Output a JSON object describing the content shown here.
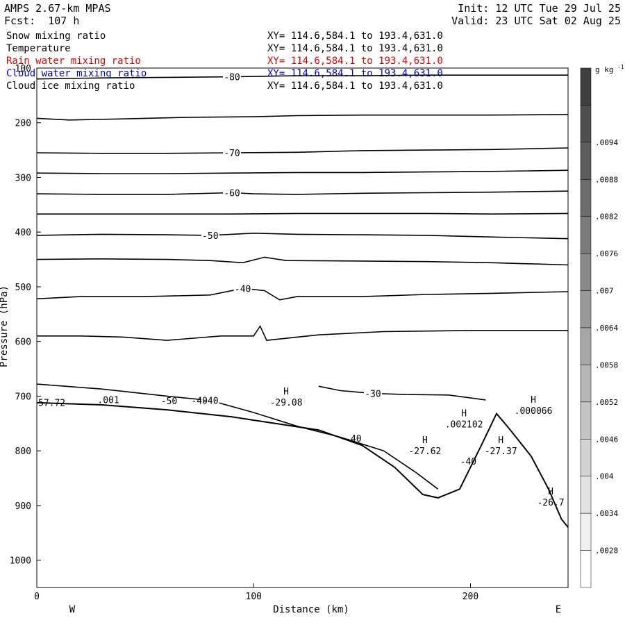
{
  "header": {
    "title": "AMPS 2.67-km MPAS",
    "forecast": "Fcst:  107 h",
    "init": "Init: 12 UTC Tue 29 Jul 25",
    "valid": "Valid: 23 UTC Sat 02 Aug 25"
  },
  "fields": [
    {
      "name": "Snow mixing ratio",
      "xy": "XY= 114.6,584.1 to 193.4,631.0",
      "color": "#000000"
    },
    {
      "name": "Temperature",
      "xy": "XY= 114.6,584.1 to 193.4,631.0",
      "color": "#000000"
    },
    {
      "name": "Rain water mixing ratio",
      "xy": "XY= 114.6,584.1 to 193.4,631.0",
      "color": "#e00000"
    },
    {
      "name": "Cloud water mixing ratio",
      "xy": "XY= 114.6,584.1 to 193.4,631.0",
      "color": "#0000c0"
    },
    {
      "name": "Cloud ice mixing ratio",
      "xy": "XY= 114.6,584.1 to 193.4,631.0",
      "color": "#000000"
    }
  ],
  "chart_data": {
    "type": "line",
    "xlabel": "Distance (km)",
    "ylabel": "Pressure (hPa)",
    "xlim": [
      0,
      245
    ],
    "ylim": [
      100,
      1050
    ],
    "y_scale": "linear, inverted",
    "x_ticks": [
      "0",
      "100",
      "200"
    ],
    "y_ticks": [
      "100",
      "200",
      "300",
      "400",
      "500",
      "600",
      "700",
      "800",
      "900",
      "1000"
    ],
    "x_end_labels": {
      "left": "W",
      "right": "E"
    },
    "colorbar": {
      "unit": "g kg",
      "unit_exp": "-1",
      "labels": [
        ".0094",
        ".0088",
        ".0082",
        ".0076",
        ".007",
        ".0064",
        ".0058",
        ".0052",
        ".0046",
        ".004",
        ".0034",
        ".0028"
      ]
    },
    "temperature_contours": [
      {
        "label": "-80",
        "points": [
          [
            0,
            120
          ],
          [
            30,
            118
          ],
          [
            60,
            117
          ],
          [
            90,
            116
          ],
          [
            120,
            114
          ],
          [
            150,
            114
          ],
          [
            180,
            113
          ],
          [
            210,
            113
          ],
          [
            245,
            113
          ]
        ]
      },
      {
        "label": "",
        "points": [
          [
            0,
            192
          ],
          [
            15,
            195
          ],
          [
            40,
            193
          ],
          [
            70,
            190
          ],
          [
            100,
            189
          ],
          [
            120,
            187
          ],
          [
            150,
            186
          ],
          [
            180,
            186
          ],
          [
            210,
            186
          ],
          [
            245,
            185
          ]
        ]
      },
      {
        "label": "-70",
        "points": [
          [
            0,
            255
          ],
          [
            30,
            256
          ],
          [
            60,
            256
          ],
          [
            90,
            255
          ],
          [
            120,
            254
          ],
          [
            150,
            251
          ],
          [
            180,
            250
          ],
          [
            210,
            249
          ],
          [
            245,
            246
          ]
        ]
      },
      {
        "label": "",
        "points": [
          [
            0,
            292
          ],
          [
            30,
            293
          ],
          [
            60,
            293
          ],
          [
            90,
            292
          ],
          [
            120,
            291
          ],
          [
            150,
            291
          ],
          [
            180,
            290
          ],
          [
            210,
            289
          ],
          [
            245,
            287
          ]
        ]
      },
      {
        "label": "-60",
        "points": [
          [
            0,
            330
          ],
          [
            30,
            331
          ],
          [
            60,
            331
          ],
          [
            90,
            328
          ],
          [
            100,
            330
          ],
          [
            120,
            331
          ],
          [
            150,
            329
          ],
          [
            180,
            328
          ],
          [
            210,
            327
          ],
          [
            245,
            325
          ]
        ]
      },
      {
        "label": "",
        "points": [
          [
            0,
            367
          ],
          [
            30,
            367
          ],
          [
            60,
            367
          ],
          [
            90,
            367
          ],
          [
            120,
            366
          ],
          [
            150,
            366
          ],
          [
            180,
            366
          ],
          [
            210,
            367
          ],
          [
            245,
            366
          ]
        ]
      },
      {
        "label": "-50",
        "points": [
          [
            0,
            406
          ],
          [
            30,
            404
          ],
          [
            60,
            405
          ],
          [
            80,
            406
          ],
          [
            100,
            402
          ],
          [
            120,
            404
          ],
          [
            150,
            405
          ],
          [
            180,
            406
          ],
          [
            210,
            409
          ],
          [
            245,
            412
          ]
        ]
      },
      {
        "label": "",
        "points": [
          [
            0,
            450
          ],
          [
            30,
            449
          ],
          [
            60,
            450
          ],
          [
            80,
            452
          ],
          [
            95,
            456
          ],
          [
            105,
            446
          ],
          [
            115,
            452
          ],
          [
            150,
            453
          ],
          [
            180,
            454
          ],
          [
            210,
            456
          ],
          [
            245,
            460
          ]
        ]
      },
      {
        "label": "-40",
        "points": [
          [
            0,
            522
          ],
          [
            20,
            518
          ],
          [
            50,
            518
          ],
          [
            80,
            515
          ],
          [
            95,
            503
          ],
          [
            105,
            507
          ],
          [
            112,
            524
          ],
          [
            120,
            518
          ],
          [
            150,
            518
          ],
          [
            180,
            514
          ],
          [
            210,
            512
          ],
          [
            245,
            509
          ]
        ]
      },
      {
        "label": "",
        "points": [
          [
            0,
            590
          ],
          [
            20,
            590
          ],
          [
            40,
            592
          ],
          [
            60,
            598
          ],
          [
            85,
            590
          ],
          [
            100,
            590
          ],
          [
            103,
            572
          ],
          [
            106,
            598
          ],
          [
            130,
            588
          ],
          [
            160,
            582
          ],
          [
            200,
            580
          ],
          [
            245,
            580
          ]
        ]
      },
      {
        "label": "-30",
        "points": [
          [
            130,
            682
          ],
          [
            140,
            690
          ],
          [
            155,
            695
          ],
          [
            170,
            697
          ],
          [
            190,
            698
          ],
          [
            207,
            707
          ]
        ]
      },
      {
        "label": "-40",
        "points": [
          [
            0,
            678
          ],
          [
            30,
            687
          ],
          [
            60,
            700
          ],
          [
            80,
            708
          ],
          [
            100,
            730
          ],
          [
            120,
            755
          ],
          [
            140,
            775
          ],
          [
            160,
            800
          ],
          [
            175,
            840
          ],
          [
            185,
            870
          ]
        ]
      }
    ],
    "max_markers": [
      {
        "label": "H",
        "value": "-29.08",
        "x": 115,
        "p": 697
      },
      {
        "label": "H",
        "value": ".000066",
        "x": 229,
        "p": 712
      },
      {
        "label": "H",
        "value": ".002102",
        "x": 197,
        "p": 737
      },
      {
        "label": "H",
        "value": "-27.62",
        "x": 179,
        "p": 786
      },
      {
        "label": "H",
        "value": "-27.37",
        "x": 214,
        "p": 786
      },
      {
        "label": "H",
        "value": "-26.7",
        "x": 237,
        "p": 880
      }
    ],
    "other_labels": [
      {
        "text": "57.72",
        "x": 0,
        "p": 718
      },
      {
        "text": ".001",
        "x": 33,
        "p": 713
      },
      {
        "text": "-50",
        "x": 61,
        "p": 715
      },
      {
        "text": "-40",
        "x": 75,
        "p": 714
      },
      {
        "text": "-40",
        "x": 146,
        "p": 783
      },
      {
        "text": "-40",
        "x": 199,
        "p": 825
      }
    ],
    "terrain": [
      [
        0,
        712
      ],
      [
        30,
        716
      ],
      [
        60,
        725
      ],
      [
        90,
        738
      ],
      [
        110,
        750
      ],
      [
        130,
        762
      ],
      [
        150,
        790
      ],
      [
        165,
        830
      ],
      [
        178,
        880
      ],
      [
        185,
        886
      ],
      [
        195,
        870
      ],
      [
        205,
        790
      ],
      [
        212,
        732
      ],
      [
        218,
        760
      ],
      [
        228,
        810
      ],
      [
        236,
        870
      ],
      [
        242,
        925
      ],
      [
        245,
        940
      ]
    ]
  }
}
